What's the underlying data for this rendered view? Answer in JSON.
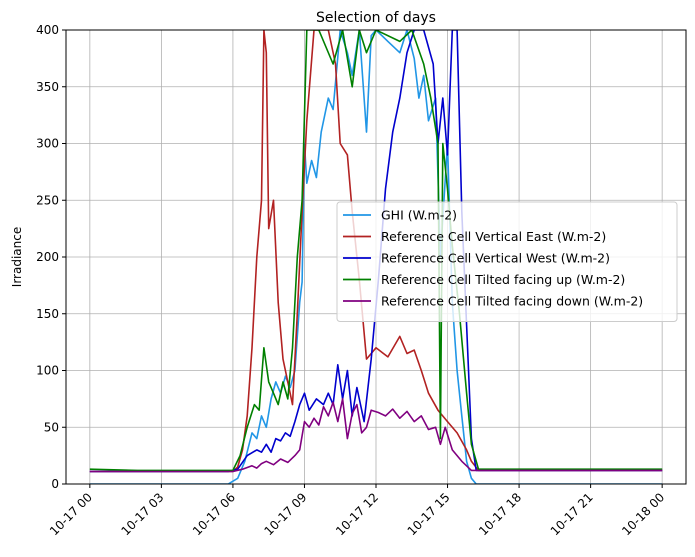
{
  "chart_data": {
    "type": "line",
    "title": "Selection of days",
    "xlabel": "",
    "ylabel": "Irradiance",
    "xlim": [
      -1.0,
      25.0
    ],
    "ylim": [
      0,
      400
    ],
    "x_ticks": [
      {
        "h": 0,
        "label": "10-17 00"
      },
      {
        "h": 3,
        "label": "10-17 03"
      },
      {
        "h": 6,
        "label": "10-17 06"
      },
      {
        "h": 9,
        "label": "10-17 09"
      },
      {
        "h": 12,
        "label": "10-17 12"
      },
      {
        "h": 15,
        "label": "10-17 15"
      },
      {
        "h": 18,
        "label": "10-17 18"
      },
      {
        "h": 21,
        "label": "10-17 21"
      },
      {
        "h": 24,
        "label": "10-18 00"
      }
    ],
    "y_ticks": [
      0,
      50,
      100,
      150,
      200,
      250,
      300,
      350,
      400
    ],
    "grid": true,
    "legend_position": "center-right",
    "x_unit_note": "hours since 10-17 00:00",
    "series": [
      {
        "name": "GHI (W.m-2)",
        "color": "#2196e6",
        "points": [
          [
            0,
            0
          ],
          [
            5.8,
            0
          ],
          [
            6.2,
            5
          ],
          [
            6.5,
            20
          ],
          [
            6.8,
            45
          ],
          [
            7.0,
            40
          ],
          [
            7.2,
            60
          ],
          [
            7.4,
            50
          ],
          [
            7.6,
            75
          ],
          [
            7.8,
            90
          ],
          [
            8.0,
            80
          ],
          [
            8.2,
            95
          ],
          [
            8.4,
            85
          ],
          [
            8.6,
            100
          ],
          [
            8.8,
            160
          ],
          [
            8.9,
            178
          ],
          [
            9.0,
            300
          ],
          [
            9.1,
            265
          ],
          [
            9.3,
            285
          ],
          [
            9.5,
            270
          ],
          [
            9.7,
            310
          ],
          [
            10.0,
            340
          ],
          [
            10.2,
            330
          ],
          [
            10.5,
            400
          ],
          [
            10.8,
            380
          ],
          [
            11.0,
            360
          ],
          [
            11.3,
            400
          ],
          [
            11.6,
            310
          ],
          [
            11.8,
            395
          ],
          [
            12.0,
            400
          ],
          [
            12.5,
            390
          ],
          [
            13.0,
            380
          ],
          [
            13.3,
            400
          ],
          [
            13.6,
            375
          ],
          [
            13.8,
            340
          ],
          [
            14.0,
            360
          ],
          [
            14.2,
            320
          ],
          [
            14.5,
            340
          ],
          [
            14.7,
            200
          ],
          [
            15.0,
            300
          ],
          [
            15.2,
            160
          ],
          [
            15.4,
            100
          ],
          [
            15.6,
            60
          ],
          [
            15.8,
            20
          ],
          [
            16.0,
            5
          ],
          [
            16.2,
            0
          ],
          [
            24,
            0
          ]
        ]
      },
      {
        "name": "Reference Cell Vertical East (W.m-2)",
        "color": "#b22222",
        "points": [
          [
            0,
            11
          ],
          [
            6.0,
            11
          ],
          [
            6.2,
            15
          ],
          [
            6.4,
            30
          ],
          [
            6.6,
            60
          ],
          [
            6.8,
            120
          ],
          [
            7.0,
            200
          ],
          [
            7.2,
            250
          ],
          [
            7.3,
            400
          ],
          [
            7.4,
            380
          ],
          [
            7.5,
            225
          ],
          [
            7.7,
            250
          ],
          [
            7.9,
            160
          ],
          [
            8.1,
            110
          ],
          [
            8.3,
            90
          ],
          [
            8.5,
            70
          ],
          [
            8.7,
            150
          ],
          [
            8.9,
            240
          ],
          [
            9.1,
            320
          ],
          [
            9.4,
            400
          ],
          [
            10.0,
            400
          ],
          [
            10.3,
            370
          ],
          [
            10.5,
            300
          ],
          [
            10.8,
            290
          ],
          [
            11.0,
            240
          ],
          [
            11.3,
            180
          ],
          [
            11.6,
            110
          ],
          [
            11.8,
            115
          ],
          [
            12.0,
            120
          ],
          [
            12.5,
            112
          ],
          [
            13.0,
            130
          ],
          [
            13.3,
            115
          ],
          [
            13.6,
            118
          ],
          [
            13.9,
            100
          ],
          [
            14.2,
            80
          ],
          [
            14.6,
            65
          ],
          [
            15.0,
            55
          ],
          [
            15.4,
            45
          ],
          [
            15.8,
            30
          ],
          [
            16.0,
            20
          ],
          [
            16.3,
            12
          ],
          [
            24,
            12
          ]
        ]
      },
      {
        "name": "Reference Cell Vertical West (W.m-2)",
        "color": "#0000cd",
        "points": [
          [
            0,
            11
          ],
          [
            5.8,
            11
          ],
          [
            6.2,
            13
          ],
          [
            6.6,
            25
          ],
          [
            7.0,
            30
          ],
          [
            7.2,
            28
          ],
          [
            7.4,
            35
          ],
          [
            7.6,
            28
          ],
          [
            7.8,
            40
          ],
          [
            8.0,
            38
          ],
          [
            8.2,
            45
          ],
          [
            8.4,
            42
          ],
          [
            8.6,
            55
          ],
          [
            8.8,
            70
          ],
          [
            9.0,
            80
          ],
          [
            9.2,
            65
          ],
          [
            9.5,
            75
          ],
          [
            9.8,
            70
          ],
          [
            10.0,
            80
          ],
          [
            10.2,
            70
          ],
          [
            10.4,
            105
          ],
          [
            10.6,
            75
          ],
          [
            10.8,
            100
          ],
          [
            11.0,
            60
          ],
          [
            11.2,
            85
          ],
          [
            11.5,
            55
          ],
          [
            11.8,
            110
          ],
          [
            12.1,
            180
          ],
          [
            12.4,
            260
          ],
          [
            12.7,
            310
          ],
          [
            13.0,
            340
          ],
          [
            13.3,
            380
          ],
          [
            13.6,
            400
          ],
          [
            14.0,
            400
          ],
          [
            14.4,
            370
          ],
          [
            14.6,
            300
          ],
          [
            14.8,
            340
          ],
          [
            15.0,
            290
          ],
          [
            15.2,
            400
          ],
          [
            15.4,
            400
          ],
          [
            15.6,
            240
          ],
          [
            15.8,
            140
          ],
          [
            16.0,
            40
          ],
          [
            16.2,
            12
          ],
          [
            24,
            12
          ]
        ]
      },
      {
        "name": "Reference Cell Tilted facing up (W.m-2)",
        "color": "#008000",
        "points": [
          [
            0,
            13
          ],
          [
            2.0,
            12
          ],
          [
            6.0,
            12
          ],
          [
            6.3,
            25
          ],
          [
            6.6,
            50
          ],
          [
            6.9,
            70
          ],
          [
            7.1,
            65
          ],
          [
            7.3,
            120
          ],
          [
            7.5,
            90
          ],
          [
            7.7,
            80
          ],
          [
            7.9,
            70
          ],
          [
            8.1,
            90
          ],
          [
            8.3,
            75
          ],
          [
            8.5,
            120
          ],
          [
            8.7,
            200
          ],
          [
            8.9,
            250
          ],
          [
            9.1,
            400
          ],
          [
            9.6,
            400
          ],
          [
            10.2,
            370
          ],
          [
            10.6,
            400
          ],
          [
            11.0,
            350
          ],
          [
            11.3,
            400
          ],
          [
            11.6,
            380
          ],
          [
            12.0,
            400
          ],
          [
            13.0,
            390
          ],
          [
            13.5,
            400
          ],
          [
            14.0,
            370
          ],
          [
            14.3,
            340
          ],
          [
            14.6,
            300
          ],
          [
            14.7,
            40
          ],
          [
            14.8,
            300
          ],
          [
            15.0,
            260
          ],
          [
            15.2,
            210
          ],
          [
            15.5,
            150
          ],
          [
            15.8,
            80
          ],
          [
            16.0,
            35
          ],
          [
            16.3,
            13
          ],
          [
            24,
            13
          ]
        ]
      },
      {
        "name": "Reference Cell Tilted facing down (W.m-2)",
        "color": "#800080",
        "points": [
          [
            0,
            11
          ],
          [
            6.0,
            11
          ],
          [
            6.4,
            13
          ],
          [
            6.8,
            16
          ],
          [
            7.0,
            14
          ],
          [
            7.2,
            18
          ],
          [
            7.4,
            20
          ],
          [
            7.7,
            17
          ],
          [
            8.0,
            22
          ],
          [
            8.3,
            19
          ],
          [
            8.6,
            25
          ],
          [
            8.8,
            30
          ],
          [
            9.0,
            55
          ],
          [
            9.2,
            50
          ],
          [
            9.4,
            58
          ],
          [
            9.6,
            52
          ],
          [
            9.8,
            68
          ],
          [
            10.0,
            60
          ],
          [
            10.2,
            72
          ],
          [
            10.4,
            55
          ],
          [
            10.6,
            75
          ],
          [
            10.8,
            40
          ],
          [
            11.0,
            62
          ],
          [
            11.2,
            70
          ],
          [
            11.4,
            45
          ],
          [
            11.6,
            50
          ],
          [
            11.8,
            65
          ],
          [
            12.1,
            63
          ],
          [
            12.4,
            60
          ],
          [
            12.7,
            66
          ],
          [
            13.0,
            58
          ],
          [
            13.3,
            64
          ],
          [
            13.6,
            55
          ],
          [
            13.9,
            60
          ],
          [
            14.2,
            48
          ],
          [
            14.5,
            50
          ],
          [
            14.7,
            35
          ],
          [
            14.9,
            50
          ],
          [
            15.2,
            30
          ],
          [
            15.6,
            20
          ],
          [
            16.0,
            12
          ],
          [
            24,
            12
          ]
        ]
      }
    ]
  }
}
